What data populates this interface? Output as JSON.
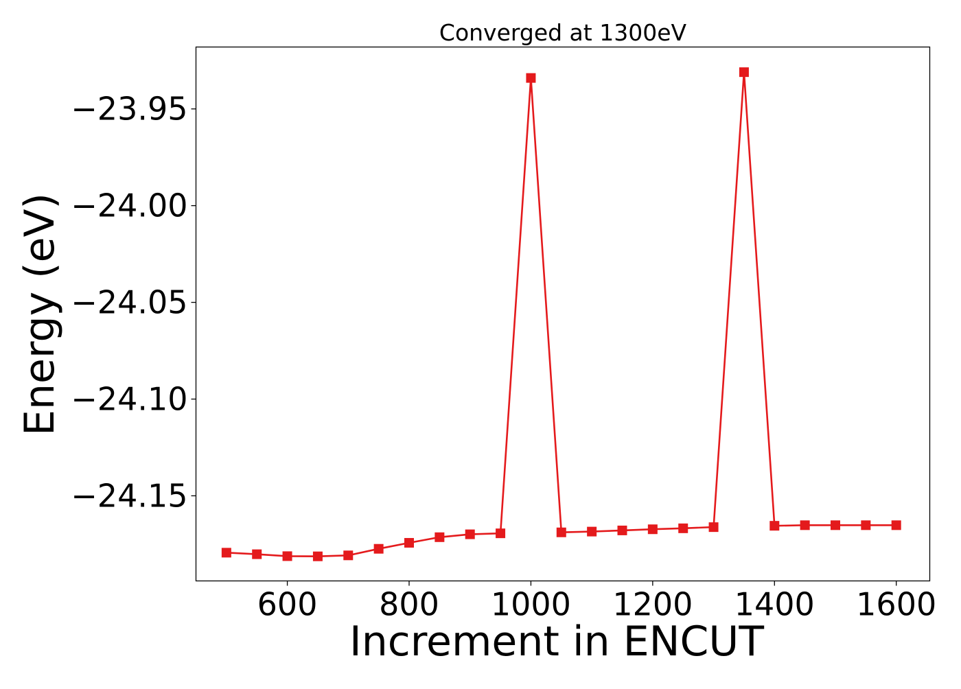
{
  "chart_data": {
    "type": "line",
    "title": "Converged at 1300eV",
    "xlabel": "Increment in ENCUT",
    "ylabel": "Energy (eV)",
    "xlim": [
      450,
      1655
    ],
    "ylim": [
      -24.194,
      -23.918
    ],
    "xticks": [
      600,
      800,
      1000,
      1200,
      1400,
      1600
    ],
    "yticks": [
      -23.95,
      -24.0,
      -24.05,
      -24.1,
      -24.15
    ],
    "xtick_labels": [
      "600",
      "800",
      "1000",
      "1200",
      "1400",
      "1600"
    ],
    "ytick_labels": [
      "−23.95",
      "−24.00",
      "−24.05",
      "−24.10",
      "−24.15"
    ],
    "grid": false,
    "color": "#e41a1c",
    "marker": "square",
    "series": [
      {
        "x": [
          500,
          550,
          600,
          650,
          700,
          750,
          800,
          850,
          900,
          950,
          1000,
          1050,
          1100,
          1150,
          1200,
          1250,
          1300,
          1350,
          1400,
          1450,
          1500,
          1550,
          1600
        ],
        "y": [
          -24.1794,
          -24.1802,
          -24.1812,
          -24.1813,
          -24.1808,
          -24.1774,
          -24.1743,
          -24.1714,
          -24.1699,
          -24.1694,
          -23.934,
          -24.1689,
          -24.1685,
          -24.1679,
          -24.1673,
          -24.1668,
          -24.1662,
          -23.931,
          -24.1655,
          -24.1652,
          -24.1652,
          -24.1652,
          -24.1652
        ]
      }
    ]
  }
}
